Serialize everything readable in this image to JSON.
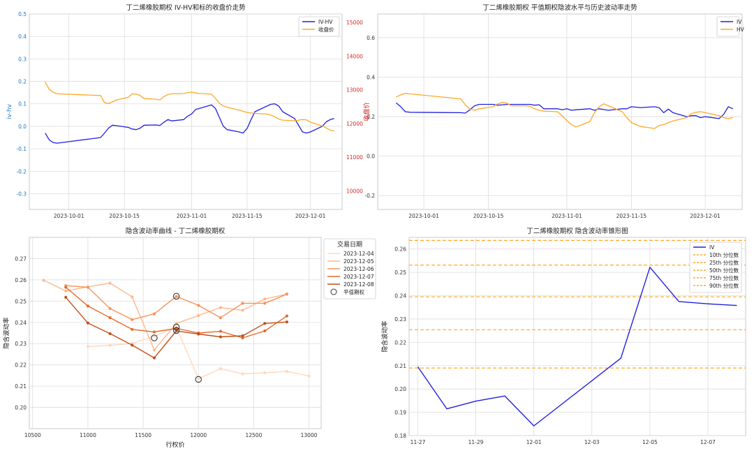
{
  "chart_data": [
    {
      "type": "line",
      "title": "丁二烯橡胶期权 IV-HV和标的收盘价走势",
      "ylabel": "iv-hv",
      "y2label": "收盘价",
      "ylim": [
        -0.37,
        0.5
      ],
      "yticks": [
        -0.3,
        -0.2,
        -0.1,
        0.0,
        0.1,
        0.2,
        0.3,
        0.4,
        0.5
      ],
      "yticklabels": [
        "-0.3",
        "-0.2",
        "-0.1",
        "0.0",
        "0.1",
        "0.2",
        "0.3",
        "0.4",
        "0.5"
      ],
      "y2lim": [
        9450,
        15250
      ],
      "y2ticks": [
        10000,
        11000,
        12000,
        13000,
        14000,
        15000
      ],
      "y2ticklabels": [
        "10000",
        "11000",
        "12000",
        "13000",
        "14000",
        "15000"
      ],
      "xlim": [
        "2023-09-21",
        "2023-12-09"
      ],
      "xticks": [
        "2023-10-01",
        "2023-10-15",
        "2023-11-01",
        "2023-11-15",
        "2023-12-01"
      ],
      "xticklabels": [
        "2023-10-01",
        "2023-10-15",
        "2023-11-01",
        "2023-11-15",
        "2023-12-01"
      ],
      "legend": "top-right",
      "grid": true,
      "series": [
        {
          "name": "IV-HV",
          "color": "#2020e0",
          "axis": "left",
          "x": [
            "2023-09-25",
            "2023-09-26",
            "2023-09-27",
            "2023-09-28",
            "2023-10-09",
            "2023-10-10",
            "2023-10-11",
            "2023-10-12",
            "2023-10-13",
            "2023-10-16",
            "2023-10-17",
            "2023-10-18",
            "2023-10-19",
            "2023-10-20",
            "2023-10-23",
            "2023-10-24",
            "2023-10-25",
            "2023-10-26",
            "2023-10-27",
            "2023-10-30",
            "2023-10-31",
            "2023-11-01",
            "2023-11-02",
            "2023-11-03",
            "2023-11-06",
            "2023-11-07",
            "2023-11-08",
            "2023-11-09",
            "2023-11-10",
            "2023-11-13",
            "2023-11-14",
            "2023-11-15",
            "2023-11-16",
            "2023-11-17",
            "2023-11-20",
            "2023-11-21",
            "2023-11-22",
            "2023-11-23",
            "2023-11-24",
            "2023-11-27",
            "2023-11-28",
            "2023-11-29",
            "2023-11-30",
            "2023-12-01",
            "2023-12-04",
            "2023-12-05",
            "2023-12-06",
            "2023-12-07"
          ],
          "y": [
            -0.03,
            -0.06,
            -0.072,
            -0.075,
            -0.05,
            -0.03,
            -0.008,
            0.005,
            0.003,
            -0.005,
            -0.012,
            -0.015,
            -0.008,
            0.005,
            0.006,
            0.004,
            0.018,
            0.03,
            0.024,
            0.03,
            0.045,
            0.055,
            0.075,
            0.08,
            0.095,
            0.08,
            0.04,
            0.0,
            -0.015,
            -0.025,
            -0.03,
            -0.01,
            0.03,
            0.065,
            0.09,
            0.098,
            0.1,
            0.09,
            0.065,
            0.035,
            0.005,
            -0.025,
            -0.03,
            -0.025,
            0.0,
            0.02,
            0.03,
            0.035
          ]
        },
        {
          "name": "收盘价",
          "color": "#ffa726",
          "axis": "right",
          "x": [
            "2023-09-25",
            "2023-09-26",
            "2023-09-27",
            "2023-09-28",
            "2023-10-09",
            "2023-10-10",
            "2023-10-11",
            "2023-10-12",
            "2023-10-13",
            "2023-10-16",
            "2023-10-17",
            "2023-10-18",
            "2023-10-19",
            "2023-10-20",
            "2023-10-23",
            "2023-10-24",
            "2023-10-25",
            "2023-10-26",
            "2023-10-27",
            "2023-10-30",
            "2023-10-31",
            "2023-11-01",
            "2023-11-02",
            "2023-11-03",
            "2023-11-06",
            "2023-11-07",
            "2023-11-08",
            "2023-11-09",
            "2023-11-10",
            "2023-11-13",
            "2023-11-14",
            "2023-11-15",
            "2023-11-16",
            "2023-11-17",
            "2023-11-20",
            "2023-11-21",
            "2023-11-22",
            "2023-11-23",
            "2023-11-24",
            "2023-11-27",
            "2023-11-28",
            "2023-11-29",
            "2023-11-30",
            "2023-12-01",
            "2023-12-04",
            "2023-12-05",
            "2023-12-06",
            "2023-12-07"
          ],
          "y": [
            13230,
            13020,
            12930,
            12880,
            12830,
            12620,
            12590,
            12640,
            12700,
            12780,
            12880,
            12870,
            12830,
            12740,
            12720,
            12700,
            12800,
            12860,
            12880,
            12890,
            12920,
            12930,
            12910,
            12890,
            12870,
            12750,
            12600,
            12520,
            12480,
            12400,
            12360,
            12330,
            12310,
            12300,
            12280,
            12250,
            12200,
            12130,
            12100,
            12080,
            12100,
            12120,
            12110,
            12040,
            11930,
            11870,
            11800,
            11780
          ]
        }
      ]
    },
    {
      "type": "line",
      "title": "丁二烯橡胶期权 平值期权隐波水平与历史波动率走势",
      "ylim": [
        -0.27,
        0.72
      ],
      "yticks": [
        -0.2,
        0.0,
        0.2,
        0.4,
        0.6
      ],
      "yticklabels": [
        "-0.2",
        "0.0",
        "0.2",
        "0.4",
        "0.6"
      ],
      "xlim": [
        "2023-09-21",
        "2023-12-09"
      ],
      "xticks": [
        "2023-10-01",
        "2023-10-15",
        "2023-11-01",
        "2023-11-15",
        "2023-12-01"
      ],
      "xticklabels": [
        "2023-10-01",
        "2023-10-15",
        "2023-11-01",
        "2023-11-15",
        "2023-12-01"
      ],
      "legend": "top-right",
      "grid": true,
      "series": [
        {
          "name": "IV",
          "color": "#2020e0",
          "x": [
            "2023-09-25",
            "2023-09-26",
            "2023-09-27",
            "2023-09-28",
            "2023-10-09",
            "2023-10-10",
            "2023-10-11",
            "2023-10-12",
            "2023-10-13",
            "2023-10-16",
            "2023-10-17",
            "2023-10-18",
            "2023-10-19",
            "2023-10-20",
            "2023-10-23",
            "2023-10-24",
            "2023-10-25",
            "2023-10-26",
            "2023-10-27",
            "2023-10-30",
            "2023-10-31",
            "2023-11-01",
            "2023-11-02",
            "2023-11-03",
            "2023-11-06",
            "2023-11-07",
            "2023-11-08",
            "2023-11-09",
            "2023-11-10",
            "2023-11-13",
            "2023-11-14",
            "2023-11-15",
            "2023-11-16",
            "2023-11-17",
            "2023-11-20",
            "2023-11-21",
            "2023-11-22",
            "2023-11-23",
            "2023-11-24",
            "2023-11-27",
            "2023-11-28",
            "2023-11-29",
            "2023-11-30",
            "2023-12-01",
            "2023-12-04",
            "2023-12-05",
            "2023-12-06",
            "2023-12-07"
          ],
          "y": [
            0.27,
            0.25,
            0.225,
            0.222,
            0.22,
            0.218,
            0.235,
            0.255,
            0.262,
            0.262,
            0.258,
            0.26,
            0.262,
            0.262,
            0.262,
            0.262,
            0.258,
            0.26,
            0.24,
            0.24,
            0.235,
            0.24,
            0.232,
            0.235,
            0.24,
            0.232,
            0.24,
            0.236,
            0.232,
            0.24,
            0.24,
            0.25,
            0.248,
            0.246,
            0.25,
            0.245,
            0.22,
            0.238,
            0.22,
            0.2,
            0.205,
            0.205,
            0.195,
            0.2,
            0.19,
            0.212,
            0.25,
            0.24
          ]
        },
        {
          "name": "HV",
          "color": "#ffa726",
          "x": [
            "2023-09-25",
            "2023-09-26",
            "2023-09-27",
            "2023-09-28",
            "2023-10-09",
            "2023-10-10",
            "2023-10-11",
            "2023-10-12",
            "2023-10-13",
            "2023-10-16",
            "2023-10-17",
            "2023-10-18",
            "2023-10-19",
            "2023-10-20",
            "2023-10-23",
            "2023-10-24",
            "2023-10-25",
            "2023-10-26",
            "2023-10-27",
            "2023-10-30",
            "2023-10-31",
            "2023-11-01",
            "2023-11-02",
            "2023-11-03",
            "2023-11-06",
            "2023-11-07",
            "2023-11-08",
            "2023-11-09",
            "2023-11-10",
            "2023-11-13",
            "2023-11-14",
            "2023-11-15",
            "2023-11-16",
            "2023-11-17",
            "2023-11-20",
            "2023-11-21",
            "2023-11-22",
            "2023-11-23",
            "2023-11-24",
            "2023-11-27",
            "2023-11-28",
            "2023-11-29",
            "2023-11-30",
            "2023-12-01",
            "2023-12-04",
            "2023-12-05",
            "2023-12-06",
            "2023-12-07"
          ],
          "y": [
            0.3,
            0.31,
            0.318,
            0.315,
            0.29,
            0.26,
            0.238,
            0.232,
            0.24,
            0.25,
            0.265,
            0.272,
            0.268,
            0.255,
            0.255,
            0.252,
            0.24,
            0.232,
            0.228,
            0.225,
            0.205,
            0.18,
            0.16,
            0.148,
            0.175,
            0.22,
            0.25,
            0.265,
            0.255,
            0.225,
            0.195,
            0.17,
            0.16,
            0.15,
            0.14,
            0.155,
            0.16,
            0.17,
            0.178,
            0.195,
            0.215,
            0.222,
            0.225,
            0.22,
            0.205,
            0.195,
            0.19,
            0.195
          ]
        }
      ]
    },
    {
      "type": "line",
      "title": "隐含波动率曲线 - 丁二烯橡胶期权",
      "xlabel": "行权价",
      "ylabel": "隐含波动率",
      "xlim": [
        10470,
        13110
      ],
      "ylim": [
        0.19,
        0.28
      ],
      "xticks": [
        10500,
        11000,
        11500,
        12000,
        12500,
        13000
      ],
      "xticklabels": [
        "10500",
        "11000",
        "11500",
        "12000",
        "12500",
        "13000"
      ],
      "yticks": [
        0.2,
        0.21,
        0.22,
        0.23,
        0.24,
        0.25,
        0.26,
        0.27
      ],
      "yticklabels": [
        "0.20",
        "0.21",
        "0.22",
        "0.23",
        "0.24",
        "0.25",
        "0.26",
        "0.27"
      ],
      "legend": "outside-right",
      "legend_title": "交易日期",
      "atm_label": "平值期权",
      "grid": true,
      "series": [
        {
          "name": "2023-12-04",
          "color": "#fdd8bd",
          "x": [
            11000,
            11200,
            11400,
            11600,
            11800,
            12000,
            12200,
            12400,
            12600,
            12800,
            13000
          ],
          "y": [
            0.2287,
            0.2292,
            0.2301,
            0.2335,
            0.2378,
            0.2135,
            0.2182,
            0.2158,
            0.2163,
            0.2169,
            0.2148
          ]
        },
        {
          "name": "2023-12-05",
          "color": "#fdb98b",
          "x": [
            10600,
            10800,
            11000,
            11200,
            11400,
            11600,
            11800,
            12000,
            12200,
            12400,
            12600,
            12800
          ],
          "y": [
            0.2598,
            0.2548,
            0.2567,
            0.2585,
            0.252,
            0.227,
            0.2395,
            0.2432,
            0.247,
            0.2457,
            0.251,
            0.2533
          ]
        },
        {
          "name": "2023-12-06",
          "color": "#f9925a",
          "x": [
            10800,
            11000,
            11200,
            11400,
            11600,
            11800,
            12000,
            12200,
            12400,
            12600,
            12800
          ],
          "y": [
            0.2573,
            0.2565,
            0.2465,
            0.2413,
            0.244,
            0.2522,
            0.248,
            0.2422,
            0.249,
            0.249,
            0.2533
          ]
        },
        {
          "name": "2023-12-07",
          "color": "#e56a2c",
          "x": [
            10800,
            11000,
            11200,
            11400,
            11600,
            11800,
            12000,
            12200,
            12400,
            12600,
            12800
          ],
          "y": [
            0.2565,
            0.2477,
            0.2422,
            0.2367,
            0.2355,
            0.2372,
            0.235,
            0.2358,
            0.2327,
            0.236,
            0.243
          ]
        },
        {
          "name": "2023-12-08",
          "color": "#c0501a",
          "x": [
            10800,
            11000,
            11200,
            11400,
            11600,
            11800,
            12000,
            12200,
            12400,
            12600,
            12800
          ],
          "y": [
            0.2518,
            0.2397,
            0.2347,
            0.2293,
            0.2233,
            0.236,
            0.2345,
            0.2332,
            0.2337,
            0.2395,
            0.2402
          ]
        }
      ],
      "atm_points": {
        "x": [
          11600,
          11800,
          11800,
          11800,
          12000
        ],
        "y": [
          0.2327,
          0.2523,
          0.2378,
          0.2362,
          0.2132
        ]
      }
    },
    {
      "type": "line",
      "title": "丁二烯橡胶期权 隐含波动率锥形图",
      "ylabel": "隐含波动率",
      "xlim": [
        -0.3,
        11.3
      ],
      "ylim": [
        0.18,
        0.265
      ],
      "xticks": [
        0,
        2,
        4,
        6,
        8,
        10
      ],
      "xticklabels": [
        "11-27",
        "11-29",
        "12-01",
        "12-03",
        "12-05",
        "12-07"
      ],
      "yticks": [
        0.18,
        0.19,
        0.2,
        0.21,
        0.22,
        0.23,
        0.24,
        0.25,
        0.26
      ],
      "yticklabels": [
        "0.18",
        "0.19",
        "0.20",
        "0.21",
        "0.22",
        "0.23",
        "0.24",
        "0.25",
        "0.26"
      ],
      "legend": "top-right",
      "grid": true,
      "series": [
        {
          "name": "IV",
          "color": "#2020e0",
          "x": [
            0,
            1,
            2,
            3,
            4,
            7,
            8,
            9,
            10,
            11
          ],
          "y": [
            0.2095,
            0.1915,
            0.1948,
            0.197,
            0.1842,
            0.2132,
            0.2522,
            0.2375,
            0.2365,
            0.2358
          ]
        }
      ],
      "percentiles": [
        {
          "name": "10th 分位数",
          "value": 0.209,
          "color": "#ffa726"
        },
        {
          "name": "25th 分位数",
          "value": 0.2254,
          "color": "#ffa726"
        },
        {
          "name": "50th 分位数",
          "value": 0.2395,
          "color": "#ffa726"
        },
        {
          "name": "75th 分位数",
          "value": 0.2531,
          "color": "#ffa726"
        },
        {
          "name": "90th 分位数",
          "value": 0.2637,
          "color": "#ffa726"
        }
      ]
    }
  ]
}
